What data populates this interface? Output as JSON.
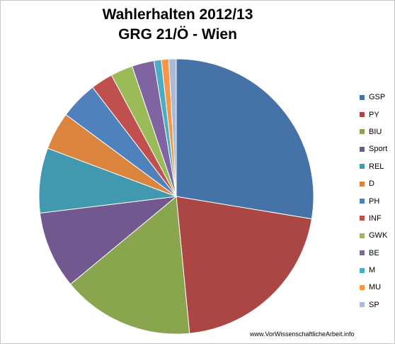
{
  "chart_data": {
    "type": "pie",
    "title": [
      "Wahlerhalten 2012/13",
      "GRG 21/Ö - Wien"
    ],
    "legend_position": "right",
    "slices": [
      {
        "label": "GSP",
        "value": 28.6,
        "color": "#4572A7"
      },
      {
        "label": "PY",
        "value": 21.6,
        "color": "#AA4643"
      },
      {
        "label": "BIU",
        "value": 16.1,
        "color": "#89A54E"
      },
      {
        "label": "Sport",
        "value": 9.4,
        "color": "#71588F"
      },
      {
        "label": "REL",
        "value": 7.9,
        "color": "#4198AF"
      },
      {
        "label": "D",
        "value": 4.6,
        "color": "#DB843D"
      },
      {
        "label": "PH",
        "value": 4.6,
        "color": "#4F81BD"
      },
      {
        "label": "INF",
        "value": 2.7,
        "color": "#C0504D"
      },
      {
        "label": "GWK",
        "value": 2.7,
        "color": "#9BBB59"
      },
      {
        "label": "BE",
        "value": 2.7,
        "color": "#8064A2"
      },
      {
        "label": "M",
        "value": 0.9,
        "color": "#4BACC6"
      },
      {
        "label": "MU",
        "value": 0.9,
        "color": "#F79646"
      },
      {
        "label": "SP",
        "value": 0.9,
        "color": "#AABAD7"
      }
    ]
  },
  "watermark": "www.VorWissenschaftlicheArbeit.info"
}
